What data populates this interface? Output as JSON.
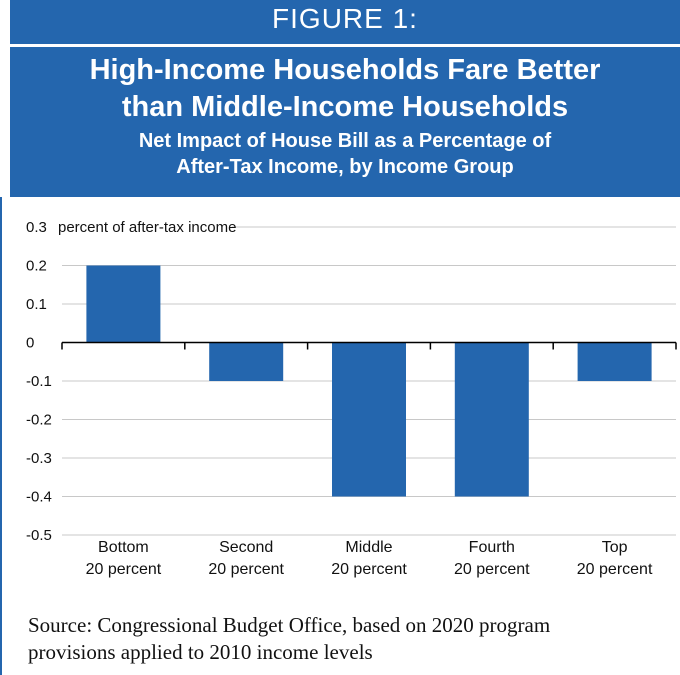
{
  "figure": {
    "label": "FIGURE 1:",
    "title_line1": "High-Income Households Fare Better",
    "title_line2": "than Middle-Income Households",
    "subtitle_line1": "Net Impact of House Bill as a Percentage of",
    "subtitle_line2": "After-Tax Income, by Income Group",
    "source_line1": "Source: Congressional Budget Office, based on 2020 program",
    "source_line2": "provisions applied to 2010 income levels"
  },
  "colors": {
    "header": "#2466ae",
    "bar": "#2466ae",
    "grid": "#c8c8c8"
  },
  "chart_data": {
    "type": "bar",
    "ylabel": "percent of after-tax income",
    "ylim": [
      -0.5,
      0.3
    ],
    "yticks": [
      0.3,
      0.2,
      0.1,
      0,
      -0.1,
      -0.2,
      -0.3,
      -0.4,
      -0.5
    ],
    "ytick_labels": [
      "0.3",
      "0.2",
      "0.1",
      "0",
      "-0.1",
      "-0.2",
      "-0.3",
      "-0.4",
      "-0.5"
    ],
    "categories": [
      [
        "Bottom",
        "20 percent"
      ],
      [
        "Second",
        "20 percent"
      ],
      [
        "Middle",
        "20 percent"
      ],
      [
        "Fourth",
        "20 percent"
      ],
      [
        "Top",
        "20 percent"
      ]
    ],
    "values": [
      0.2,
      -0.1,
      -0.4,
      -0.4,
      -0.1
    ],
    "grid": true
  }
}
